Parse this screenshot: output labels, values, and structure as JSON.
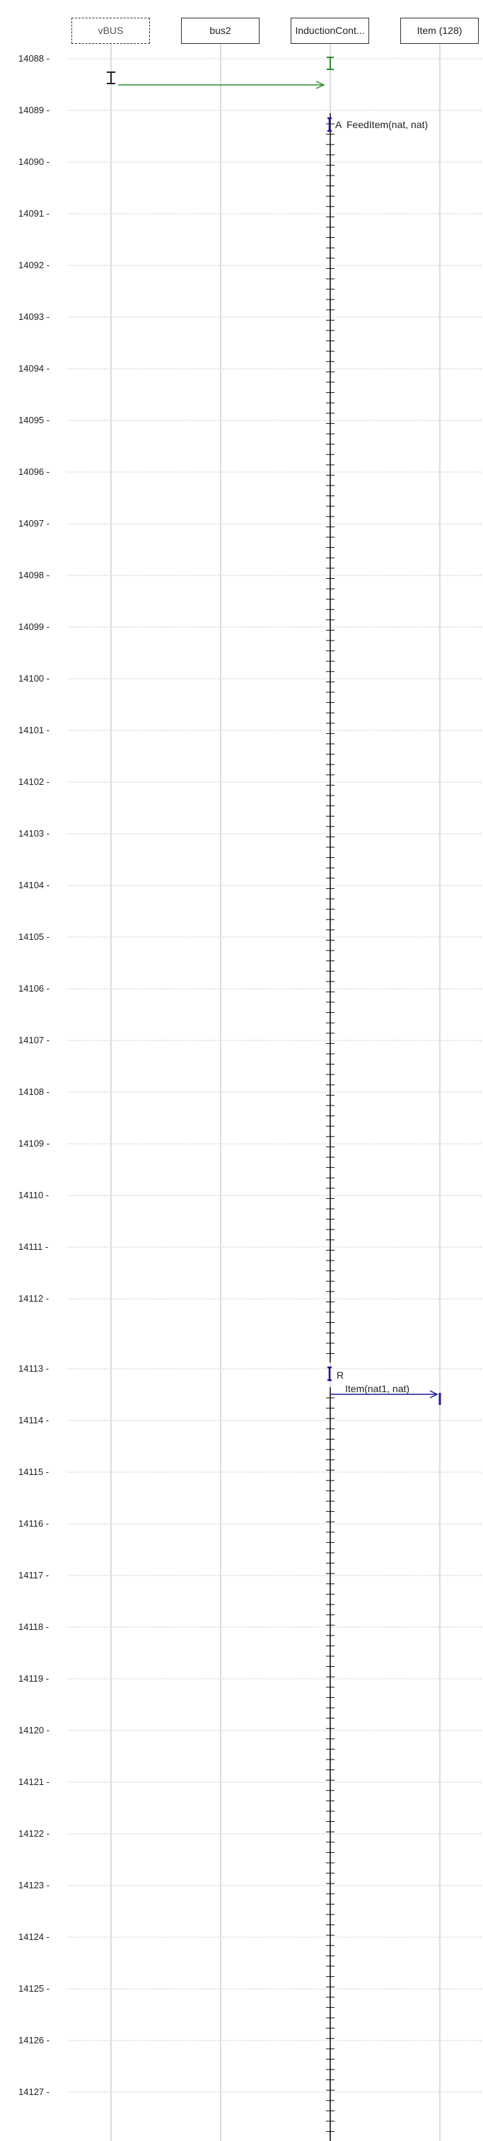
{
  "lifelines": [
    {
      "label": "vBUS",
      "style": "dashed"
    },
    {
      "label": "bus2",
      "style": "solid"
    },
    {
      "label": "InductionCont...",
      "style": "solid"
    },
    {
      "label": "Item (128)",
      "style": "solid"
    }
  ],
  "time_axis": {
    "ticks": [
      "14088 -",
      "14089 -",
      "14090 -",
      "14091 -",
      "14092 -",
      "14093 -",
      "14094 -",
      "14095 -",
      "14096 -",
      "14097 -",
      "14098 -",
      "14099 -",
      "14100 -",
      "14101 -",
      "14102 -",
      "14103 -",
      "14104 -",
      "14105 -",
      "14106 -",
      "14107 -",
      "14108 -",
      "14109 -",
      "14110 -",
      "14111 -",
      "14112 -",
      "14113 -",
      "14114 -",
      "14115 -",
      "14116 -",
      "14117 -",
      "14118 -",
      "14119 -",
      "14120 -",
      "14121 -",
      "14122 -",
      "14123 -",
      "14124 -",
      "14125 -",
      "14126 -",
      "14127 -"
    ]
  },
  "messages": [
    {
      "from": "vBUS",
      "to": "InductionCont...",
      "label": "",
      "color": "#2e8b2e"
    },
    {
      "from": "InductionCont...",
      "to": "InductionCont...",
      "marker": "A",
      "label": "FeedItem(nat, nat)",
      "color": "#1a1a9c"
    },
    {
      "from": "InductionCont...",
      "to": "Item (128)",
      "marker": "R",
      "label": "Item(nat1, nat)",
      "color": "#1a1a9c"
    }
  ],
  "colors": {
    "green": "#2e8b2e",
    "blue": "#1a1a9c",
    "lifeline": "#dddddd",
    "grid": "#c8c8c8"
  }
}
